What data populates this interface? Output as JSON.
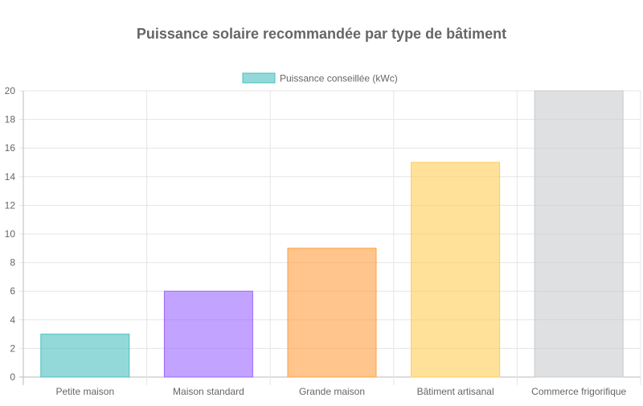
{
  "chart_data": {
    "type": "bar",
    "title": "Puissance solaire recommandée par type de bâtiment",
    "categories": [
      "Petite maison",
      "Maison standard",
      "Grande maison",
      "Bâtiment artisanal",
      "Commerce frigorifique"
    ],
    "series": [
      {
        "name": "Puissance conseillée (kWc)",
        "values": [
          3,
          6,
          9,
          15,
          20
        ],
        "colors": [
          "#4bc0c0",
          "#9966ff",
          "#ff9f40",
          "#ffcd56",
          "#c9cbcf"
        ]
      }
    ],
    "xlabel": "",
    "ylabel": "",
    "ylim": [
      0,
      20
    ],
    "yticks": [
      0,
      2,
      4,
      6,
      8,
      10,
      12,
      14,
      16,
      18,
      20
    ],
    "grid": true,
    "legend": "top"
  }
}
